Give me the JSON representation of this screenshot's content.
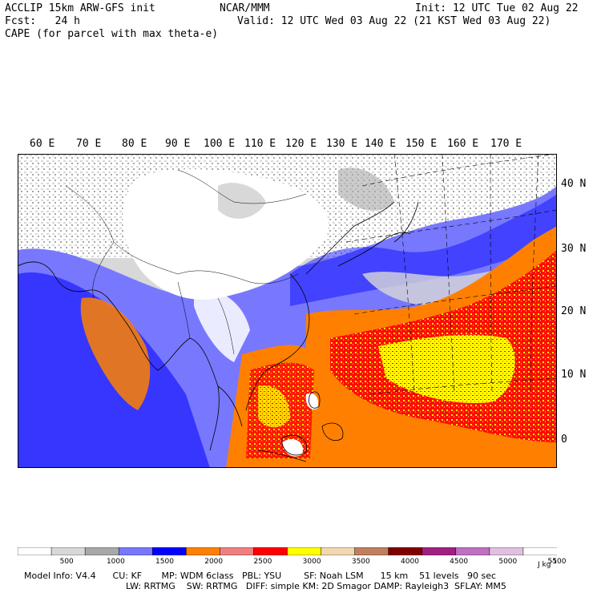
{
  "header": {
    "line1_left": "ACCLIP 15km ARW-GFS init",
    "line1_center": "NCAR/MMM",
    "line1_right": "Init: 12 UTC Tue 02 Aug 22",
    "line2_left": "Fcst:   24 h",
    "line2_right": "Valid: 12 UTC Wed 03 Aug 22 (21 KST Wed 03 Aug 22)",
    "line3_left": "CAPE (for parcel with max theta-e)"
  },
  "map": {
    "lon_labels": [
      "60 E",
      "70 E",
      "80 E",
      "90 E",
      "100 E",
      "110 E",
      "120 E",
      "130 E",
      "140 E",
      "150 E",
      "160 E",
      "170 E"
    ],
    "lat_labels": [
      "40 N",
      "30 N",
      "20 N",
      "10 N",
      "0"
    ],
    "colors": {
      "land_bg": "#ffffff",
      "light_gray": "#d8d8d8",
      "mid_gray": "#a8a8a8",
      "periwinkle": "#7878ff",
      "blue": "#0000ff",
      "orange": "#ff8000",
      "salmon": "#f08080",
      "red": "#ff0000",
      "yellow": "#ffff00"
    }
  },
  "colorbar": {
    "colors": [
      "#ffffff",
      "#d8d8d8",
      "#a8a8a8",
      "#7878ff",
      "#0000ff",
      "#ff8000",
      "#f08080",
      "#ff0000",
      "#ffff00",
      "#f0d8b0",
      "#c08060",
      "#800000",
      "#a02080",
      "#c070c0",
      "#e0c0e0",
      "#ffffff"
    ],
    "labels": [
      "500",
      "1000",
      "1500",
      "2000",
      "2500",
      "3000",
      "3500",
      "4000",
      "4500",
      "5000",
      "5500"
    ],
    "unit": "J kg"
  },
  "model_info": {
    "line1": "Model Info: V4.4      CU: KF       MP: WDM 6class   PBL: YSU        SF: Noah LSM      15 km    51 levels   90 sec",
    "line2": "LW: RRTMG    SW: RRTMG   DIFF: simple KM: 2D Smagor DAMP: Rayleigh3  SFLAY: MM5"
  }
}
